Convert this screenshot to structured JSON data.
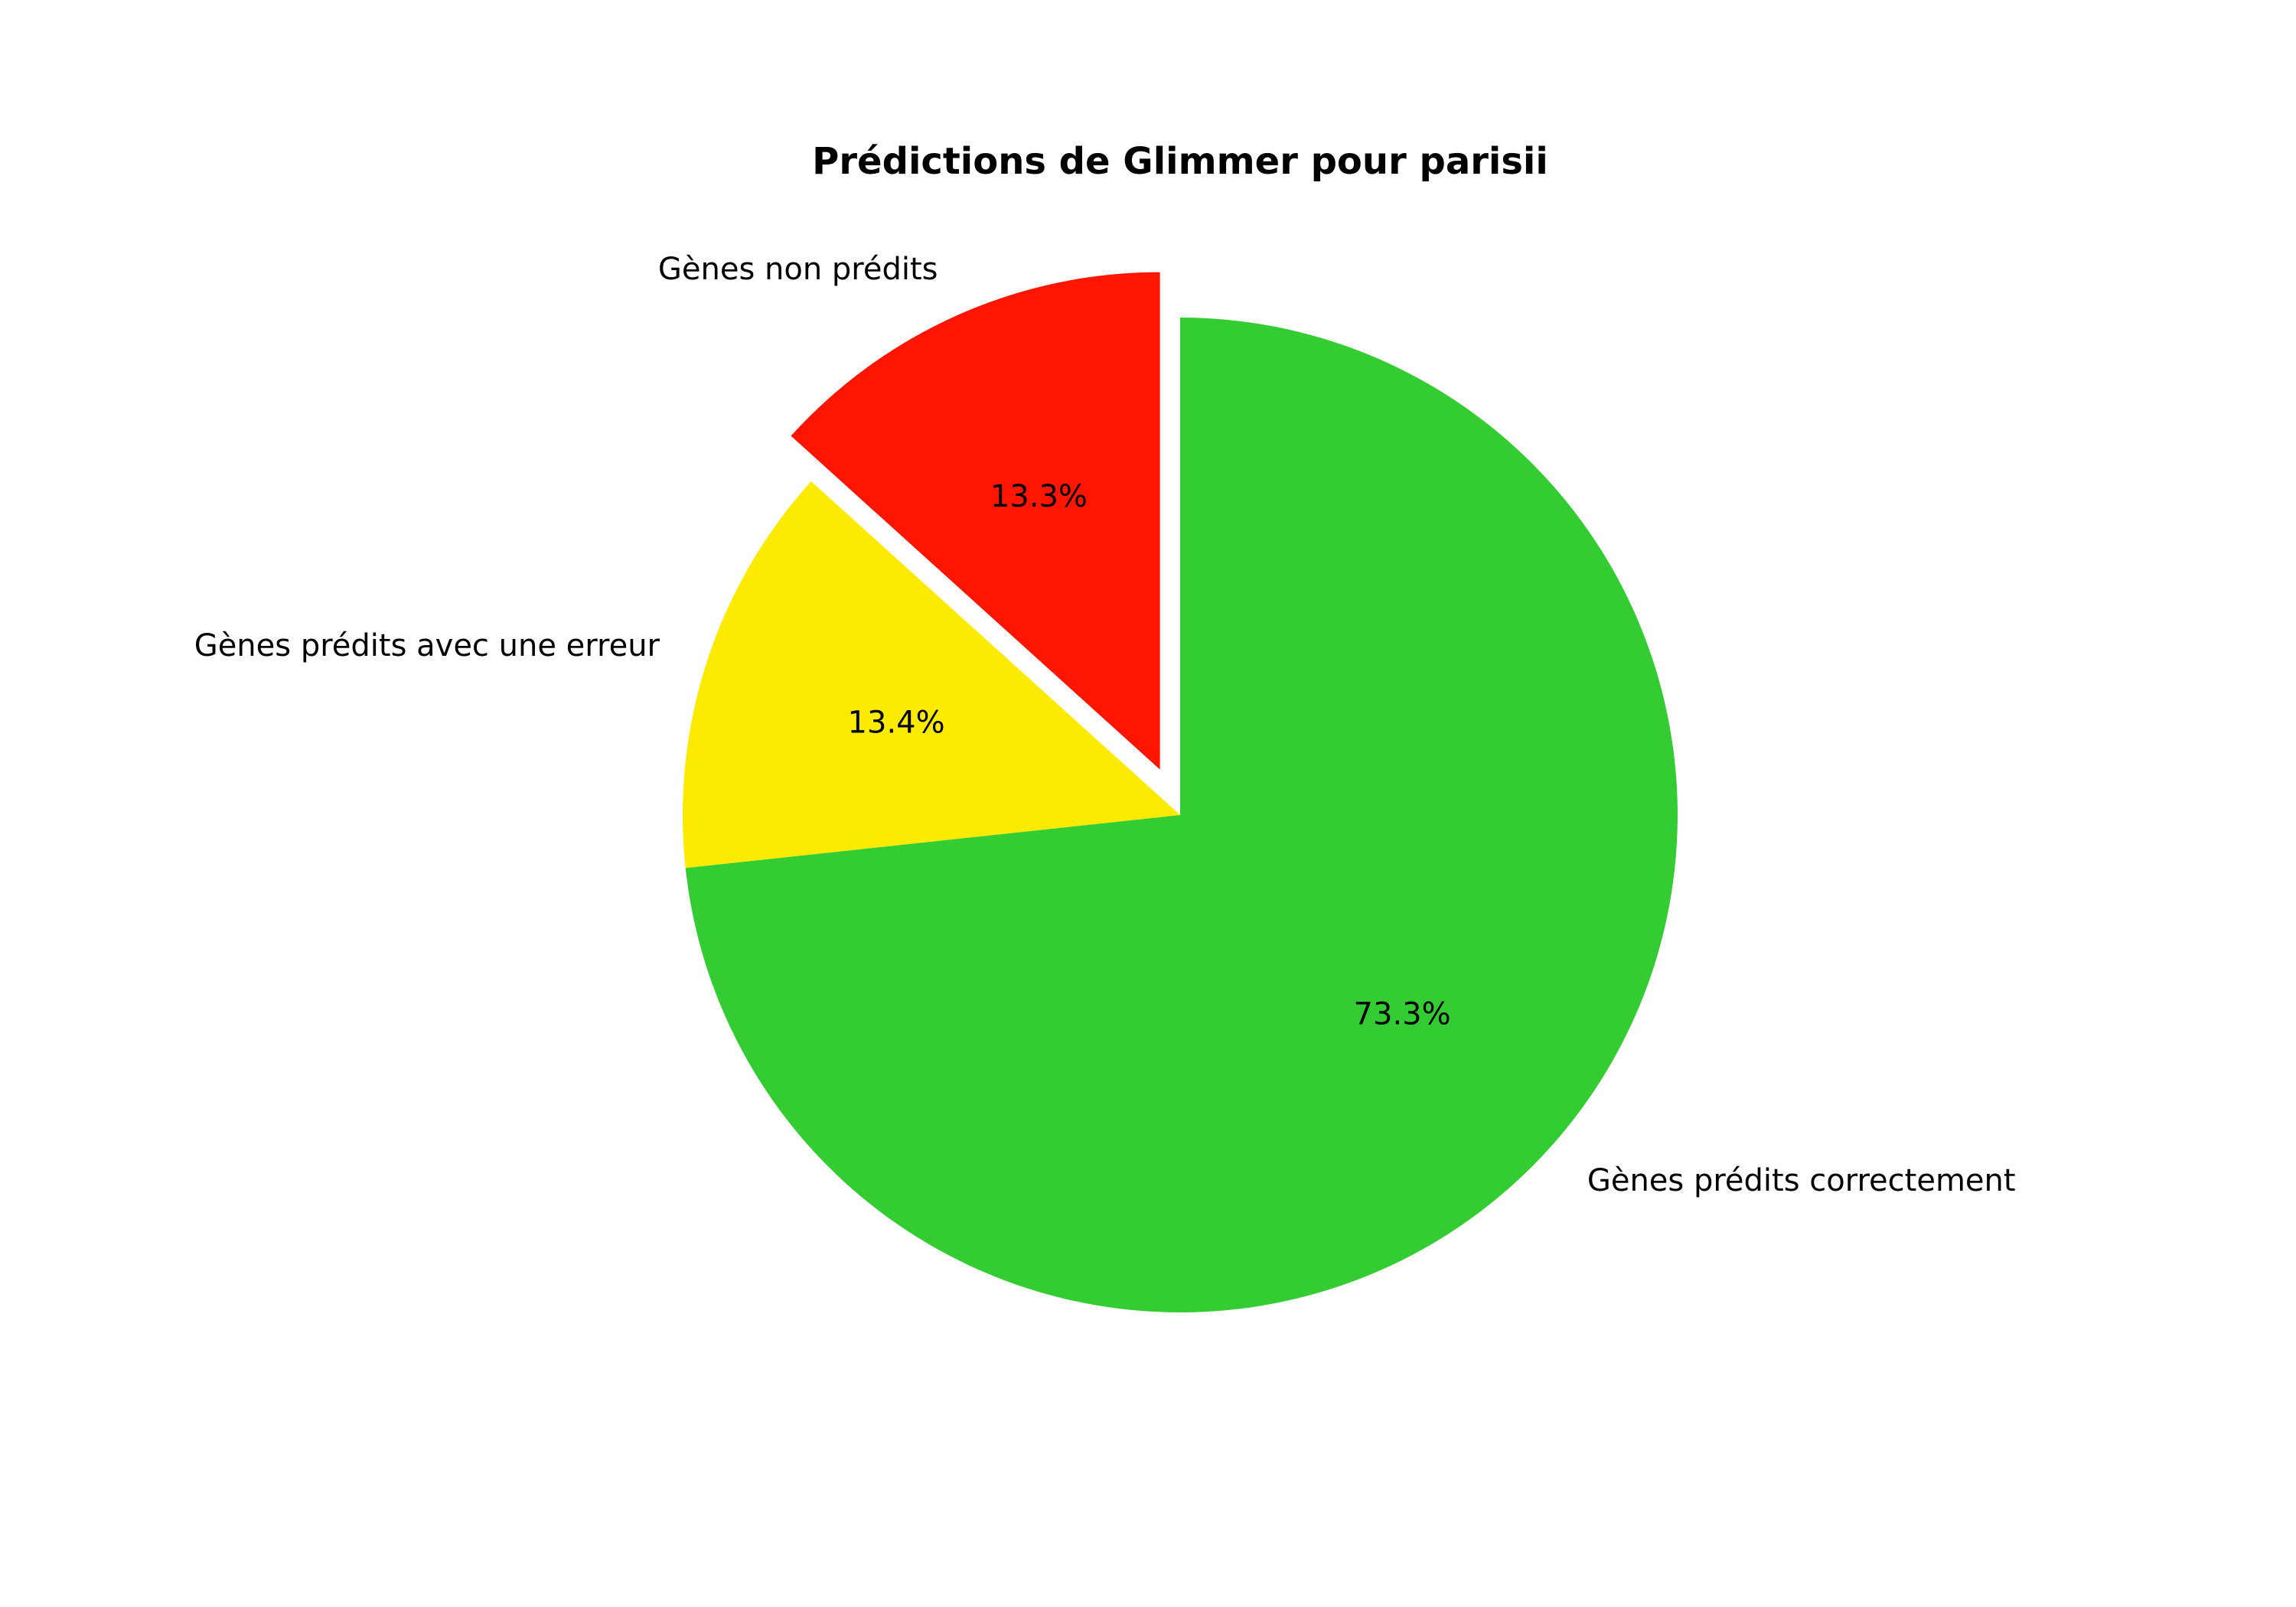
{
  "chart_data": {
    "type": "pie",
    "title": "Prédictions de Glimmer pour parisii",
    "slices": [
      {
        "label": "Gènes prédits correctement",
        "value": 73.3,
        "pct_text": "73.3%",
        "color": "#33cc33",
        "exploded": false
      },
      {
        "label": "Gènes prédits avec une erreur",
        "value": 13.4,
        "pct_text": "13.4%",
        "color": "#fcea00",
        "exploded": false
      },
      {
        "label": "Gènes non prédits",
        "value": 13.3,
        "pct_text": "13.3%",
        "color": "#ff1500",
        "exploded": true
      }
    ],
    "start_angle": "top",
    "direction": "clockwise",
    "legend": "none"
  }
}
